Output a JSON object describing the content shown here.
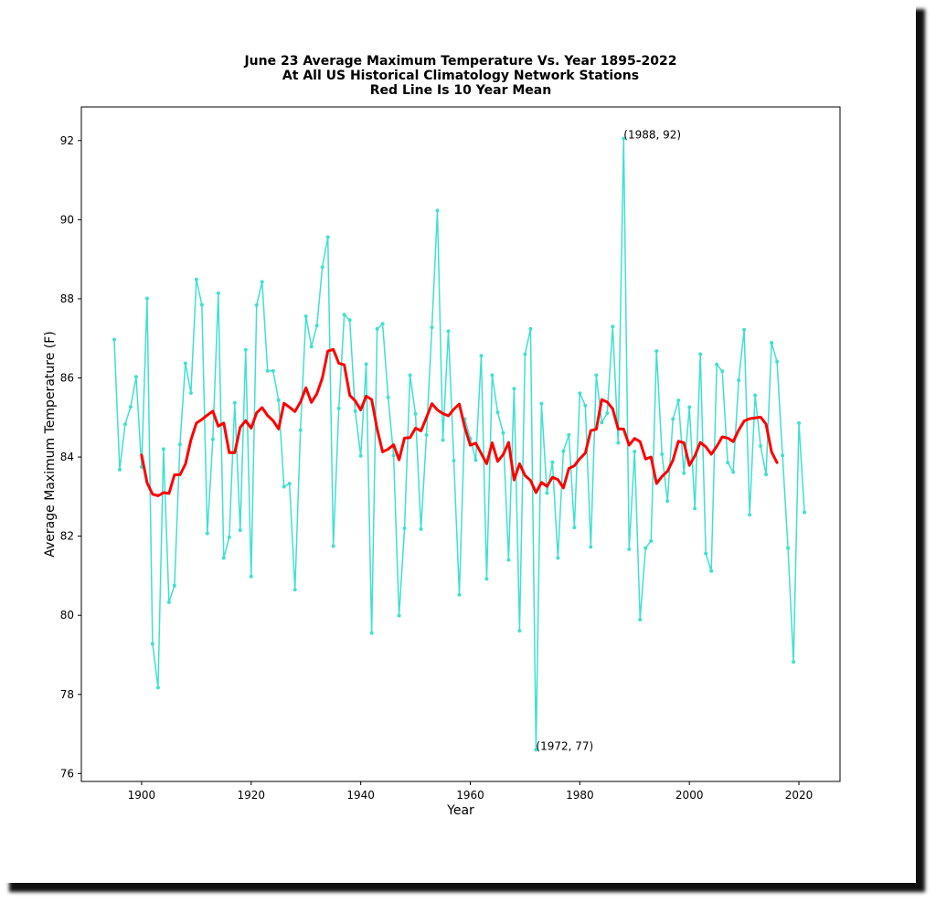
{
  "chart_data": {
    "type": "line",
    "title_lines": [
      "June 23 Average Maximum Temperature Vs. Year 1895-2022",
      "At All US Historical Climatology Network Stations",
      "Red Line Is 10 Year Mean"
    ],
    "xlabel": "Year",
    "ylabel": "Average Maximum Temperature (F)",
    "xlim": [
      1889,
      2027.5
    ],
    "ylim": [
      75.8,
      92.85
    ],
    "xticks": [
      1900,
      1920,
      1940,
      1960,
      1980,
      2000,
      2020
    ],
    "yticks": [
      76,
      78,
      80,
      82,
      84,
      86,
      88,
      90,
      92
    ],
    "grid": false,
    "annotations": [
      {
        "text": "(1988, 92)",
        "x": 1988,
        "y": 92.05
      },
      {
        "text": "(1972, 77)",
        "x": 1972,
        "y": 76.6
      }
    ],
    "series": [
      {
        "style": "line-with-dots",
        "color": "#40e0d0",
        "x": [
          1895,
          1896,
          1897,
          1898,
          1899,
          1900,
          1901,
          1902,
          1903,
          1904,
          1905,
          1906,
          1907,
          1908,
          1909,
          1910,
          1911,
          1912,
          1913,
          1914,
          1915,
          1916,
          1917,
          1918,
          1919,
          1920,
          1921,
          1922,
          1923,
          1924,
          1925,
          1926,
          1927,
          1928,
          1929,
          1930,
          1931,
          1932,
          1933,
          1934,
          1935,
          1936,
          1937,
          1938,
          1939,
          1940,
          1941,
          1942,
          1943,
          1944,
          1945,
          1946,
          1947,
          1948,
          1949,
          1950,
          1951,
          1952,
          1953,
          1954,
          1955,
          1956,
          1957,
          1958,
          1959,
          1960,
          1961,
          1962,
          1963,
          1964,
          1965,
          1966,
          1967,
          1968,
          1969,
          1970,
          1971,
          1972,
          1973,
          1974,
          1975,
          1976,
          1977,
          1978,
          1979,
          1980,
          1981,
          1982,
          1983,
          1984,
          1985,
          1986,
          1987,
          1988,
          1989,
          1990,
          1991,
          1992,
          1993,
          1994,
          1995,
          1996,
          1997,
          1998,
          1999,
          2000,
          2001,
          2002,
          2003,
          2004,
          2005,
          2006,
          2007,
          2008,
          2009,
          2010,
          2011,
          2012,
          2013,
          2014,
          2015,
          2016,
          2017,
          2018,
          2019,
          2020,
          2021
        ],
        "y": [
          86.97,
          83.68,
          84.83,
          85.27,
          86.03,
          83.75,
          88.01,
          79.28,
          78.17,
          84.2,
          80.33,
          80.75,
          84.32,
          86.37,
          85.62,
          88.49,
          87.85,
          82.07,
          84.45,
          88.14,
          81.45,
          81.97,
          85.37,
          82.15,
          86.71,
          80.98,
          87.84,
          88.43,
          86.18,
          86.18,
          85.44,
          83.25,
          83.33,
          80.65,
          84.68,
          87.56,
          86.79,
          87.32,
          88.8,
          89.56,
          81.75,
          85.23,
          87.6,
          87.46,
          85.16,
          84.03,
          86.35,
          79.55,
          87.24,
          87.37,
          85.51,
          84.04,
          79.99,
          82.2,
          86.07,
          85.09,
          82.18,
          84.56,
          87.28,
          90.23,
          84.43,
          87.18,
          83.91,
          80.52,
          84.96,
          84.47,
          83.92,
          86.56,
          80.92,
          86.07,
          85.13,
          84.61,
          81.4,
          85.73,
          79.61,
          86.6,
          87.24,
          76.6,
          85.35,
          83.09,
          83.87,
          81.45,
          84.15,
          84.56,
          82.22,
          85.61,
          85.3,
          81.73,
          86.07,
          84.87,
          85.11,
          87.3,
          84.36,
          92.05,
          81.67,
          84.14,
          79.89,
          81.7,
          81.88,
          86.68,
          84.07,
          82.89,
          84.96,
          85.43,
          83.59,
          85.26,
          82.7,
          86.6,
          81.56,
          81.12,
          86.34,
          86.17,
          83.86,
          83.62,
          85.94,
          87.22,
          82.54,
          85.56,
          84.28,
          83.56,
          86.89,
          86.41,
          84.04,
          81.7,
          78.82,
          84.86,
          82.6
        ]
      },
      {
        "style": "line",
        "color": "#ff0000",
        "x": [
          1900,
          1901,
          1902,
          1903,
          1904,
          1905,
          1906,
          1907,
          1908,
          1909,
          1910,
          1911,
          1912,
          1913,
          1914,
          1915,
          1916,
          1917,
          1918,
          1919,
          1920,
          1921,
          1922,
          1923,
          1924,
          1925,
          1926,
          1927,
          1928,
          1929,
          1930,
          1931,
          1932,
          1933,
          1934,
          1935,
          1936,
          1937,
          1938,
          1939,
          1940,
          1941,
          1942,
          1943,
          1944,
          1945,
          1946,
          1947,
          1948,
          1949,
          1950,
          1951,
          1952,
          1953,
          1954,
          1955,
          1956,
          1957,
          1958,
          1959,
          1960,
          1961,
          1962,
          1963,
          1964,
          1965,
          1966,
          1967,
          1968,
          1969,
          1970,
          1971,
          1972,
          1973,
          1974,
          1975,
          1976,
          1977,
          1978,
          1979,
          1980,
          1981,
          1982,
          1983,
          1984,
          1985,
          1986,
          1987,
          1988,
          1989,
          1990,
          1991,
          1992,
          1993,
          1994,
          1995,
          1996,
          1997,
          1998,
          1999,
          2000,
          2001,
          2002,
          2003,
          2004,
          2005,
          2006,
          2007,
          2008,
          2009,
          2010,
          2011,
          2012,
          2013,
          2014,
          2015,
          2016
        ],
        "y": [
          84.05,
          83.35,
          83.06,
          83.02,
          83.1,
          83.08,
          83.55,
          83.55,
          83.82,
          84.43,
          84.86,
          84.95,
          85.06,
          85.16,
          84.78,
          84.86,
          84.11,
          84.11,
          84.75,
          84.92,
          84.73,
          85.12,
          85.25,
          85.05,
          84.92,
          84.71,
          85.36,
          85.26,
          85.15,
          85.39,
          85.75,
          85.38,
          85.6,
          86.0,
          86.68,
          86.72,
          86.37,
          86.33,
          85.56,
          85.42,
          85.19,
          85.54,
          85.45,
          84.71,
          84.13,
          84.2,
          84.31,
          83.93,
          84.48,
          84.49,
          84.73,
          84.66,
          85.0,
          85.35,
          85.19,
          85.1,
          85.04,
          85.21,
          85.34,
          84.75,
          84.3,
          84.35,
          84.09,
          83.83,
          84.36,
          83.89,
          84.06,
          84.37,
          83.42,
          83.83,
          83.53,
          83.41,
          83.1,
          83.36,
          83.26,
          83.49,
          83.43,
          83.22,
          83.71,
          83.78,
          83.96,
          84.1,
          84.67,
          84.7,
          85.45,
          85.39,
          85.22,
          84.71,
          84.71,
          84.3,
          84.47,
          84.39,
          83.95,
          84.0,
          83.33,
          83.51,
          83.64,
          83.92,
          84.4,
          84.36,
          83.79,
          84.03,
          84.37,
          84.26,
          84.07,
          84.27,
          84.51,
          84.48,
          84.39,
          84.68,
          84.91,
          84.97,
          84.99,
          85.01,
          84.83,
          84.13,
          83.86
        ]
      }
    ]
  }
}
